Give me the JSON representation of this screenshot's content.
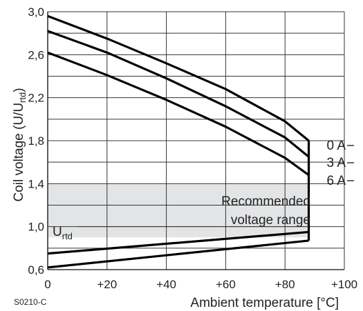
{
  "chart_data": {
    "type": "line",
    "figure_code": "S0210-C",
    "xlabel": "Ambient temperature [°C]",
    "ylabel_main": "Coil voltage (U/U",
    "ylabel_sub": "rtd",
    "ylabel_close": ")",
    "xlim": [
      0,
      100
    ],
    "ylim": [
      0.6,
      3.0
    ],
    "x_ticks": [
      0,
      20,
      40,
      60,
      80,
      100
    ],
    "x_tick_labels": [
      "0",
      "+20",
      "+40",
      "+60",
      "+80",
      "+100"
    ],
    "y_ticks": [
      0.6,
      1.0,
      1.4,
      1.8,
      2.2,
      2.6,
      3.0
    ],
    "y_tick_labels": [
      "0,6",
      "1,0",
      "1,4",
      "1,8",
      "2,2",
      "2,6",
      "3,0"
    ],
    "grid": true,
    "series": [
      {
        "name": "0 A",
        "x": [
          0,
          20,
          40,
          60,
          80,
          88
        ],
        "y": [
          2.96,
          2.75,
          2.52,
          2.28,
          1.98,
          1.8
        ]
      },
      {
        "name": "3 A",
        "x": [
          0,
          20,
          40,
          60,
          80,
          88
        ],
        "y": [
          2.82,
          2.62,
          2.38,
          2.12,
          1.83,
          1.65
        ]
      },
      {
        "name": "6 A",
        "x": [
          0,
          20,
          40,
          60,
          80,
          88
        ],
        "y": [
          2.62,
          2.41,
          2.18,
          1.93,
          1.64,
          1.48
        ]
      },
      {
        "name": "",
        "x": [
          0,
          88
        ],
        "y": [
          0.75,
          0.95
        ]
      },
      {
        "name": "",
        "x": [
          0,
          88
        ],
        "y": [
          0.62,
          0.87
        ]
      }
    ],
    "band": {
      "label_line1": "Recommended",
      "label_line2": "voltage range",
      "x": [
        0,
        88
      ],
      "y": [
        0.9,
        1.4
      ]
    },
    "urtd": {
      "main": "U",
      "sub": "rtd",
      "y": 1.0
    },
    "colors": {
      "line": "#000000",
      "band": "#e3e4e6",
      "grid": "#333333"
    }
  }
}
